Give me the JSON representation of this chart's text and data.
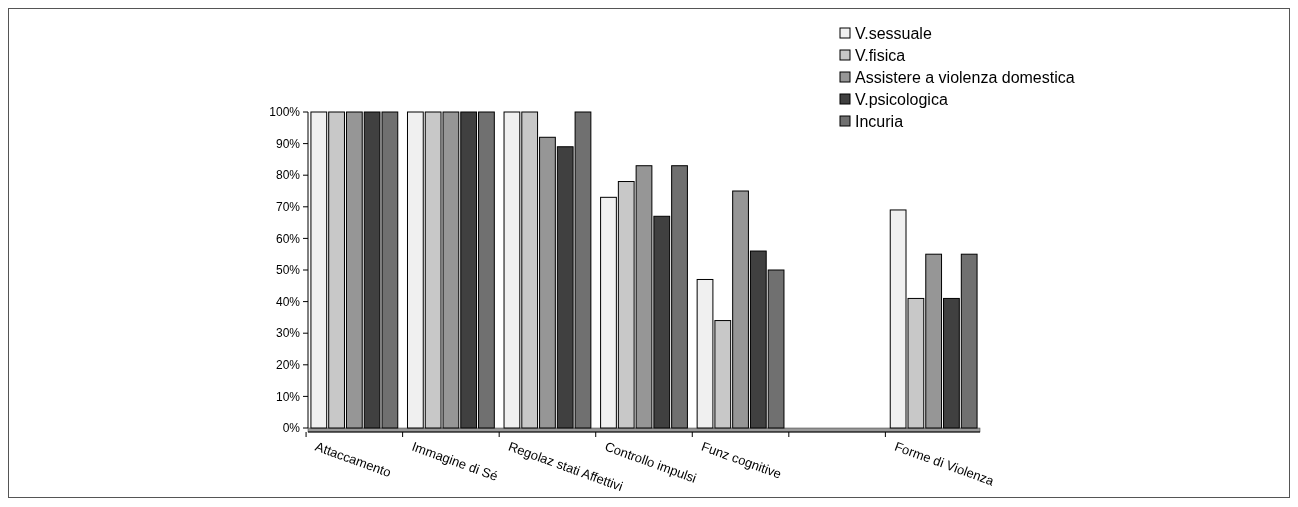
{
  "chart_data": {
    "type": "bar",
    "categories": [
      "Attaccamento",
      "Immagine di Sé",
      "Regolaz stati Affettivi",
      "Controllo impulsi",
      "Funz cognitive",
      null,
      "Forme di Violenza"
    ],
    "series": [
      {
        "name": "V.sessuale",
        "color": "#f0f0f0",
        "values": [
          100,
          100,
          100,
          73,
          47,
          null,
          69
        ]
      },
      {
        "name": "V.fisica",
        "color": "#c8c8c8",
        "values": [
          100,
          100,
          100,
          78,
          34,
          null,
          41
        ]
      },
      {
        "name": "Assistere a violenza domestica",
        "color": "#969696",
        "values": [
          100,
          100,
          92,
          83,
          75,
          null,
          55
        ]
      },
      {
        "name": "V.psicologica",
        "color": "#404040",
        "values": [
          100,
          100,
          89,
          67,
          56,
          null,
          41
        ]
      },
      {
        "name": "Incuria",
        "color": "#707070",
        "values": [
          100,
          100,
          100,
          83,
          50,
          null,
          55
        ]
      }
    ],
    "ylim": [
      0,
      100
    ],
    "yticks": [
      {
        "value": 0,
        "label": "0%"
      },
      {
        "value": 10,
        "label": "10%"
      },
      {
        "value": 20,
        "label": "20%"
      },
      {
        "value": 30,
        "label": "30%"
      },
      {
        "value": 40,
        "label": "40%"
      },
      {
        "value": 50,
        "label": "50%"
      },
      {
        "value": 60,
        "label": "60%"
      },
      {
        "value": 70,
        "label": "70%"
      },
      {
        "value": 80,
        "label": "80%"
      },
      {
        "value": 90,
        "label": "90%"
      },
      {
        "value": 100,
        "label": "100%"
      }
    ],
    "grid": false,
    "legend": "top right"
  }
}
